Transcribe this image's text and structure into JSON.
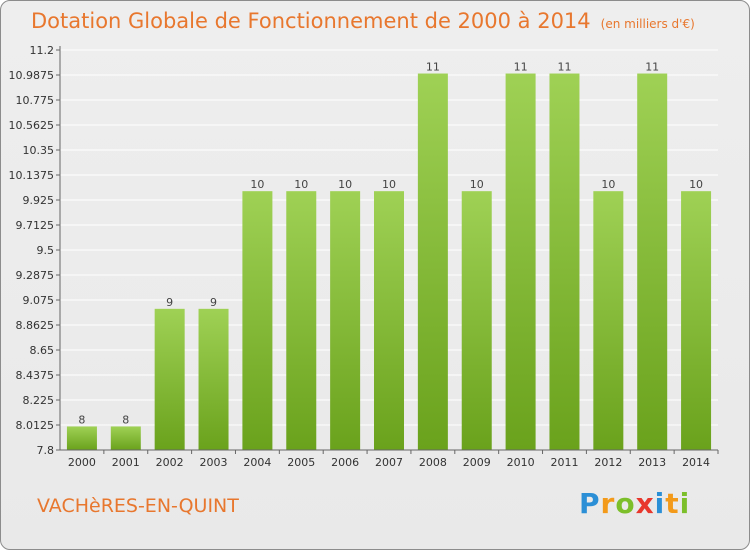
{
  "header": {
    "title": "Dotation Globale de Fonctionnement de 2000 à 2014",
    "unit": "(en milliers d'€)"
  },
  "footer": {
    "commune": "VACHèRES-EN-QUINT",
    "logo_letters": [
      "P",
      "r",
      "o",
      "x",
      "i",
      "t",
      "i"
    ]
  },
  "colors": {
    "title": "#e8772e",
    "bar_top": "#9fd155",
    "bar_bottom": "#6aa21c",
    "grid": "#ffffff"
  },
  "chart_data": {
    "type": "bar",
    "categories": [
      "2000",
      "2001",
      "2002",
      "2003",
      "2004",
      "2005",
      "2006",
      "2007",
      "2008",
      "2009",
      "2010",
      "2011",
      "2012",
      "2013",
      "2014"
    ],
    "values": [
      8,
      8,
      9,
      9,
      10,
      10,
      10,
      10,
      11,
      10,
      11,
      11,
      10,
      11,
      10
    ],
    "labels": [
      "8",
      "8",
      "9",
      "9",
      "10",
      "10",
      "10",
      "10",
      "11",
      "10",
      "11",
      "11",
      "10",
      "11",
      "10"
    ],
    "title": "Dotation Globale de Fonctionnement de 2000 à 2014",
    "ylim": [
      7.8,
      11.2
    ],
    "yticks": [
      "7.8",
      "8.0125",
      "8.225",
      "8.4375",
      "8.65",
      "8.8625",
      "9.075",
      "9.2875",
      "9.5",
      "9.7125",
      "9.925",
      "10.1375",
      "10.35",
      "10.5625",
      "10.775",
      "10.9875",
      "11.2"
    ],
    "grid": true
  }
}
